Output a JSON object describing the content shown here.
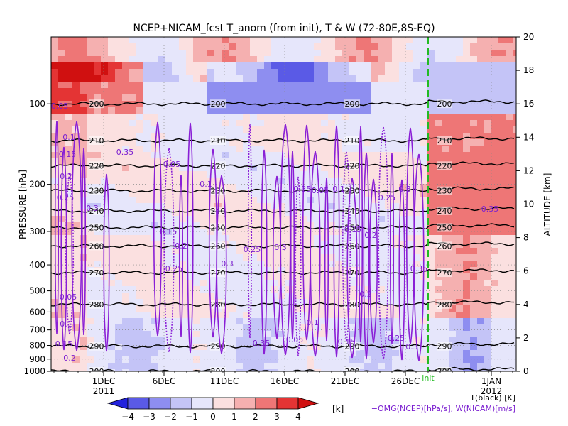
{
  "chart_data": {
    "type": "heatmap",
    "title": "NCEP+NICAM_fcst T_anom (from init), T & W  (72-80E,8S-EQ)",
    "ylabel_left": "PRESSURE [hPa]",
    "ylabel_right": "ALTITUDE [km]",
    "x_ticks": [
      "1DEC",
      "6DEC",
      "11DEC",
      "16DEC",
      "21DEC",
      "26DEC",
      "1JAN"
    ],
    "x_year_labels": [
      "2011",
      "2012"
    ],
    "init_label": "init",
    "pressure_ticks": [
      "100",
      "200",
      "300",
      "400",
      "500",
      "600",
      "700",
      "800",
      "900",
      "1000"
    ],
    "altitude_ticks": [
      "0",
      "2",
      "4",
      "6",
      "8",
      "10",
      "12",
      "14",
      "16",
      "18",
      "20"
    ],
    "colorbar": {
      "ticks": [
        "−4",
        "−3",
        "−2",
        "−1",
        "0",
        "1",
        "2",
        "3",
        "4"
      ],
      "unit": "[k]",
      "colors": [
        "#2222dd",
        "#5a5ae6",
        "#8e8ef0",
        "#c4c4f7",
        "#e6e6fb",
        "#fbe0e0",
        "#f5b0b0",
        "#ee7676",
        "#e43434",
        "#d01010"
      ]
    },
    "temperature_contours": [
      {
        "label": "200",
        "alt_km": 16.0
      },
      {
        "label": "210",
        "alt_km": 13.8
      },
      {
        "label": "220",
        "alt_km": 12.3
      },
      {
        "label": "230",
        "alt_km": 10.8
      },
      {
        "label": "240",
        "alt_km": 9.6
      },
      {
        "label": "250",
        "alt_km": 8.6
      },
      {
        "label": "260",
        "alt_km": 7.5
      },
      {
        "label": "270",
        "alt_km": 5.9
      },
      {
        "label": "280",
        "alt_km": 4.0
      },
      {
        "label": "290",
        "alt_km": 1.5
      },
      {
        "label": "300",
        "alt_km": 0.0
      }
    ],
    "w_contour_labels": [
      "0.05",
      "0.1",
      "0.15",
      "0.2",
      "0.25",
      "0.3",
      "0.35"
    ],
    "legend_t": "T(black) [K]",
    "legend_w": "−OMG(NCEP)[hPa/s], W(NICAM)[m/s]"
  }
}
